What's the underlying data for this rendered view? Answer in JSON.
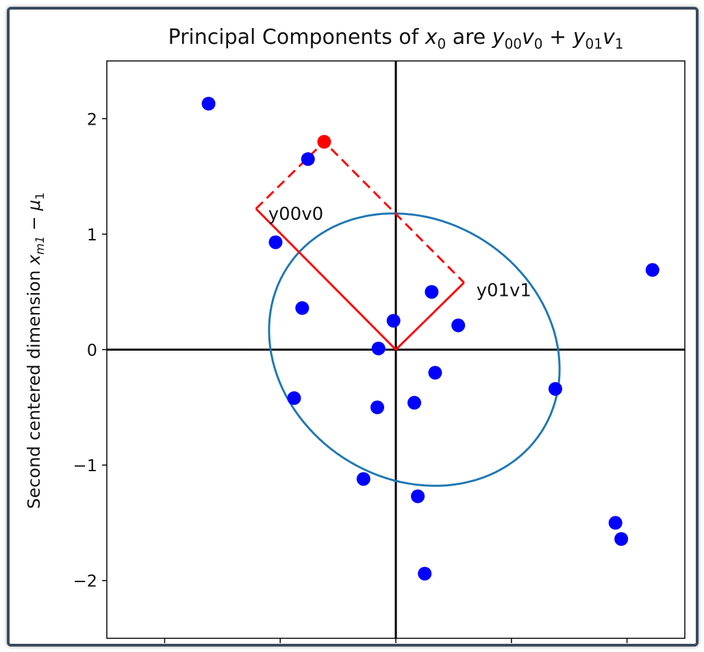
{
  "chart_data": {
    "type": "scatter",
    "title_parts": {
      "prefix": "Principal Components of ",
      "x": "x",
      "x_sub": "0",
      "mid": " are ",
      "y1": "y",
      "y1_sub": "00",
      "v1": "v",
      "v1_sub": "0",
      "plus": " + ",
      "y2": "y",
      "y2_sub": "01",
      "v2": "v",
      "v2_sub": "1"
    },
    "ylabel_parts": {
      "prefix": "Second centered dimension ",
      "x": "x",
      "x_sub": "m1",
      "minus": " − ",
      "mu": "μ",
      "mu_sub": "1"
    },
    "xlim": [
      -2.5,
      2.5
    ],
    "ylim": [
      -2.5,
      2.5
    ],
    "yticks": [
      2,
      1,
      0,
      -1,
      -2
    ],
    "ytick_labels": [
      "2",
      "1",
      "0",
      "−1",
      "−2"
    ],
    "xticks": [
      -2,
      -1,
      0,
      1,
      2
    ],
    "grid": false,
    "points": [
      {
        "x": -1.62,
        "y": 2.13
      },
      {
        "x": -0.76,
        "y": 1.65
      },
      {
        "x": -1.04,
        "y": 0.93
      },
      {
        "x": -0.81,
        "y": 0.36
      },
      {
        "x": -0.02,
        "y": 0.25
      },
      {
        "x": 0.31,
        "y": 0.5
      },
      {
        "x": 0.54,
        "y": 0.21
      },
      {
        "x": 2.22,
        "y": 0.69
      },
      {
        "x": -0.15,
        "y": 0.01
      },
      {
        "x": 0.34,
        "y": -0.2
      },
      {
        "x": -0.88,
        "y": -0.42
      },
      {
        "x": -0.16,
        "y": -0.5
      },
      {
        "x": 0.16,
        "y": -0.46
      },
      {
        "x": 1.38,
        "y": -0.34
      },
      {
        "x": -0.28,
        "y": -1.12
      },
      {
        "x": 0.19,
        "y": -1.27
      },
      {
        "x": 0.25,
        "y": -1.94
      },
      {
        "x": 1.9,
        "y": -1.5
      },
      {
        "x": 1.95,
        "y": -1.64
      }
    ],
    "highlight_point": {
      "x": -0.62,
      "y": 1.8
    },
    "v0_end": {
      "x": -1.21,
      "y": 1.22
    },
    "v1_end": {
      "x": 0.59,
      "y": 0.58
    },
    "labels": {
      "v0": "y00v0",
      "v1": "y01v1"
    },
    "ellipse": {
      "cx": 0.16,
      "cy": 0.0,
      "rx": 1.31,
      "ry": 1.12,
      "angle_deg": -33
    },
    "colors": {
      "points": "#0000ff",
      "highlight": "#ff0000",
      "components": "#ff0000",
      "ellipse": "#1f77b4",
      "axes": "#000000"
    }
  }
}
